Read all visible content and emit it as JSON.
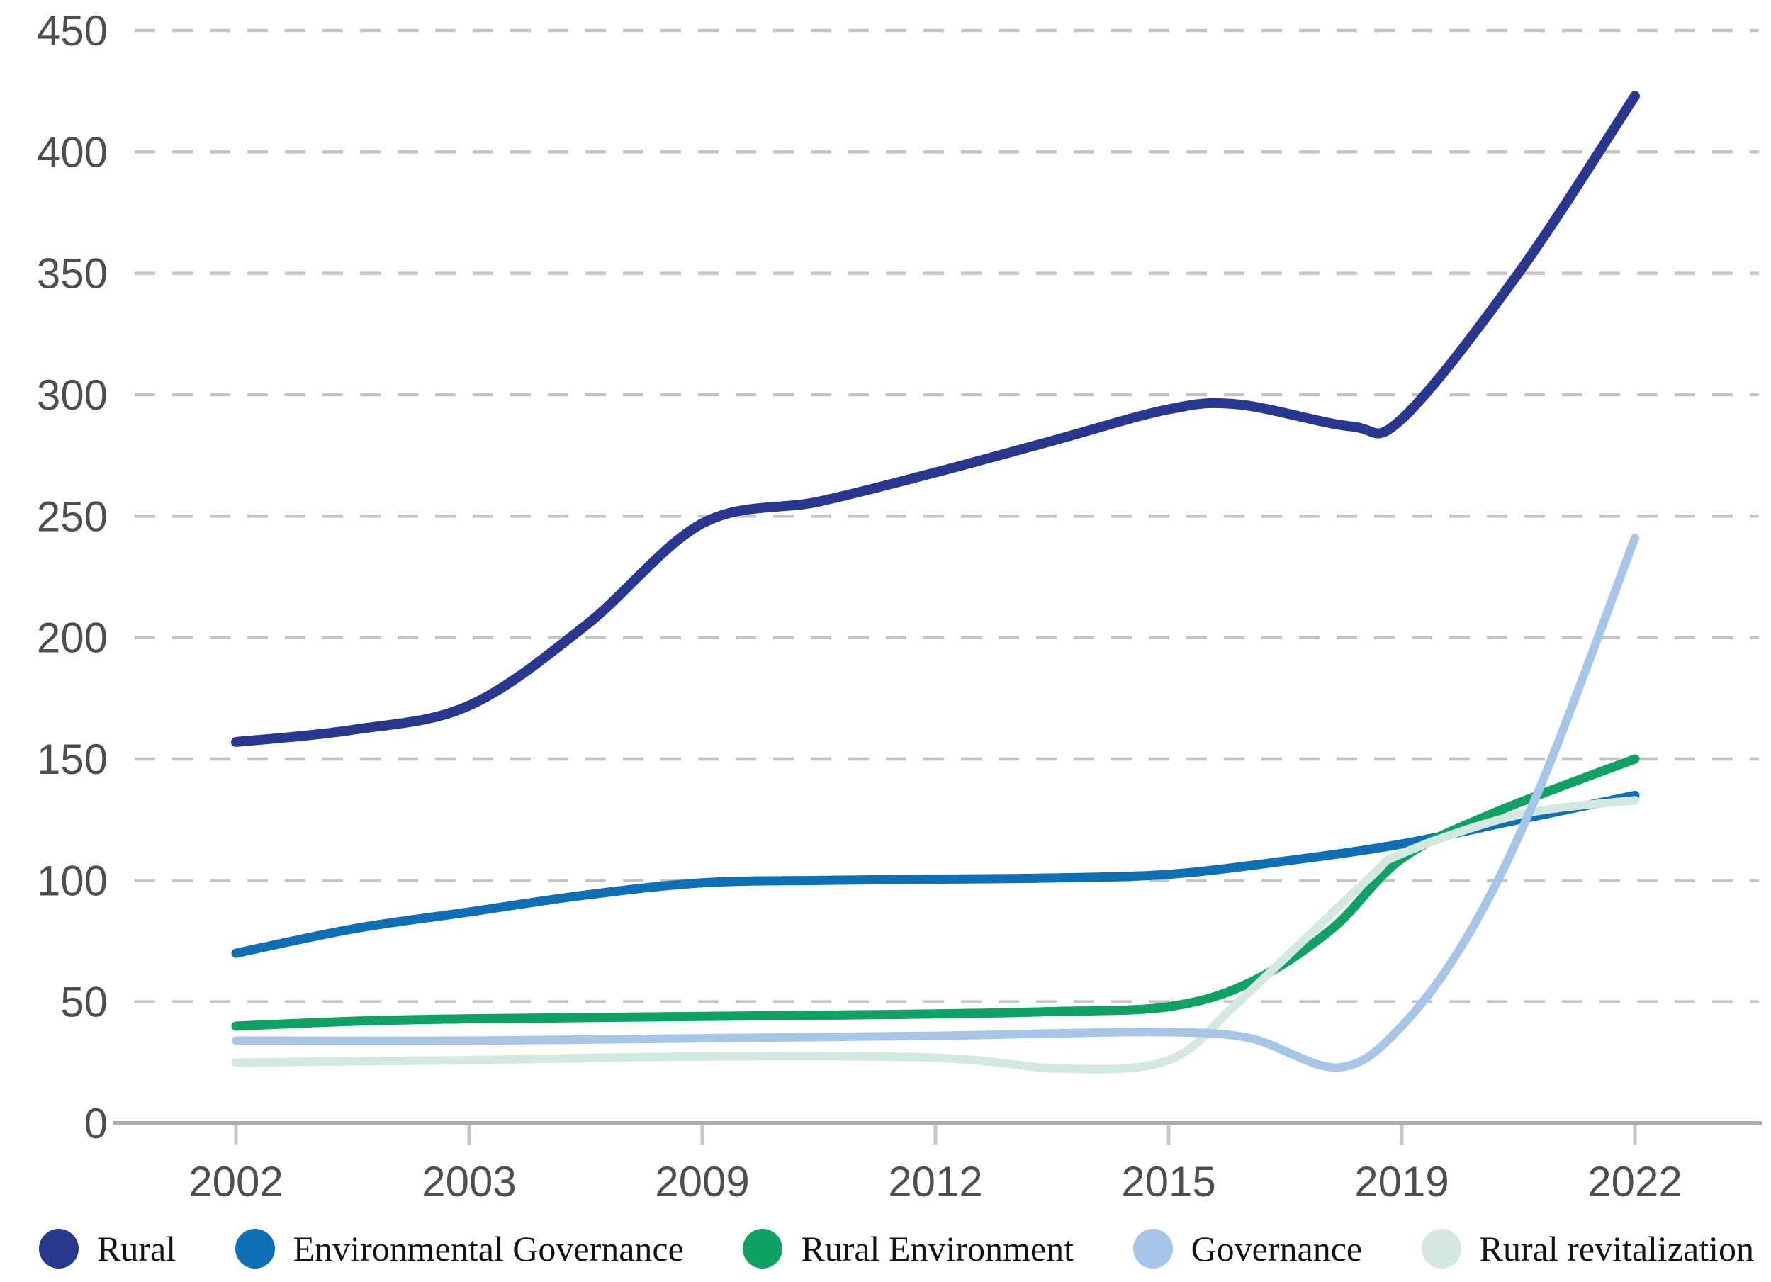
{
  "chart_data": {
    "type": "line",
    "title": "",
    "xlabel": "",
    "ylabel": "",
    "categories": [
      "2002",
      "2003",
      "2009",
      "2012",
      "2015",
      "2019",
      "2022"
    ],
    "y_ticks": [
      0,
      50,
      100,
      150,
      200,
      250,
      300,
      350,
      400,
      450
    ],
    "ylim": [
      0,
      450
    ],
    "grid": "horizontal-dashed",
    "gridline_color": "#c3c3c8",
    "axis_line_color": "#acacac",
    "tick_label_color": "#4e4e4e",
    "legend_position": "bottom",
    "series": [
      {
        "name": "Rural",
        "color": "#28388F",
        "stroke_width": 14,
        "values_at_years": [
          157,
          172,
          247,
          268,
          294,
          290,
          423
        ],
        "control_points": [
          [
            0,
            157
          ],
          [
            0.5,
            162
          ],
          [
            1,
            172
          ],
          [
            1.5,
            205
          ],
          [
            2,
            247
          ],
          [
            2.5,
            256
          ],
          [
            3,
            268
          ],
          [
            3.5,
            281
          ],
          [
            4,
            294
          ],
          [
            4.3,
            296
          ],
          [
            4.78,
            287
          ],
          [
            5,
            290
          ],
          [
            5.5,
            350
          ],
          [
            6,
            423
          ]
        ]
      },
      {
        "name": "Environmental Governance",
        "color": "#0F6FB5",
        "stroke_width": 13,
        "values_at_years": [
          70,
          87,
          99,
          100.5,
          102.5,
          115,
          135
        ],
        "control_points": [
          [
            0,
            70
          ],
          [
            0.5,
            80
          ],
          [
            1,
            87
          ],
          [
            1.5,
            94
          ],
          [
            2,
            99
          ],
          [
            2.5,
            100
          ],
          [
            3,
            100.5
          ],
          [
            3.5,
            101
          ],
          [
            4,
            102.5
          ],
          [
            4.5,
            108
          ],
          [
            5,
            115
          ],
          [
            5.5,
            125
          ],
          [
            6,
            135
          ]
        ]
      },
      {
        "name": "Rural Environment",
        "color": "#10A164",
        "stroke_width": 13,
        "values_at_years": [
          40,
          43,
          44,
          45,
          48,
          109,
          150
        ],
        "control_points": [
          [
            0,
            40
          ],
          [
            0.5,
            42
          ],
          [
            1,
            43
          ],
          [
            2,
            44
          ],
          [
            3,
            45
          ],
          [
            3.5,
            46
          ],
          [
            4,
            48
          ],
          [
            4.35,
            58
          ],
          [
            4.7,
            80
          ],
          [
            5,
            109
          ],
          [
            5.4,
            128
          ],
          [
            6,
            150
          ]
        ]
      },
      {
        "name": "Rural revitalization",
        "color": "#D3E8DE",
        "stroke_width": 12,
        "values_at_years": [
          25,
          26,
          27.5,
          27,
          26,
          111,
          133
        ],
        "control_points": [
          [
            0,
            25
          ],
          [
            0.5,
            25.5
          ],
          [
            1,
            26
          ],
          [
            2,
            27.5
          ],
          [
            3,
            27
          ],
          [
            3.55,
            22.5
          ],
          [
            4,
            26
          ],
          [
            4.3,
            50
          ],
          [
            4.85,
            100
          ],
          [
            5,
            111
          ],
          [
            5.5,
            127
          ],
          [
            6,
            133
          ]
        ]
      },
      {
        "name": "Governance",
        "color": "#A7C4E9",
        "stroke_width": 12,
        "values_at_years": [
          34,
          34,
          35,
          36,
          37.5,
          40,
          241
        ],
        "control_points": [
          [
            0,
            34
          ],
          [
            1,
            34
          ],
          [
            2,
            35
          ],
          [
            3,
            36
          ],
          [
            3.5,
            37
          ],
          [
            4,
            37.5
          ],
          [
            4.35,
            35
          ],
          [
            4.73,
            23
          ],
          [
            5,
            40
          ],
          [
            5.3,
            80
          ],
          [
            5.6,
            140
          ],
          [
            6,
            241
          ]
        ]
      }
    ],
    "legend_order": [
      0,
      1,
      2,
      4,
      3
    ]
  }
}
